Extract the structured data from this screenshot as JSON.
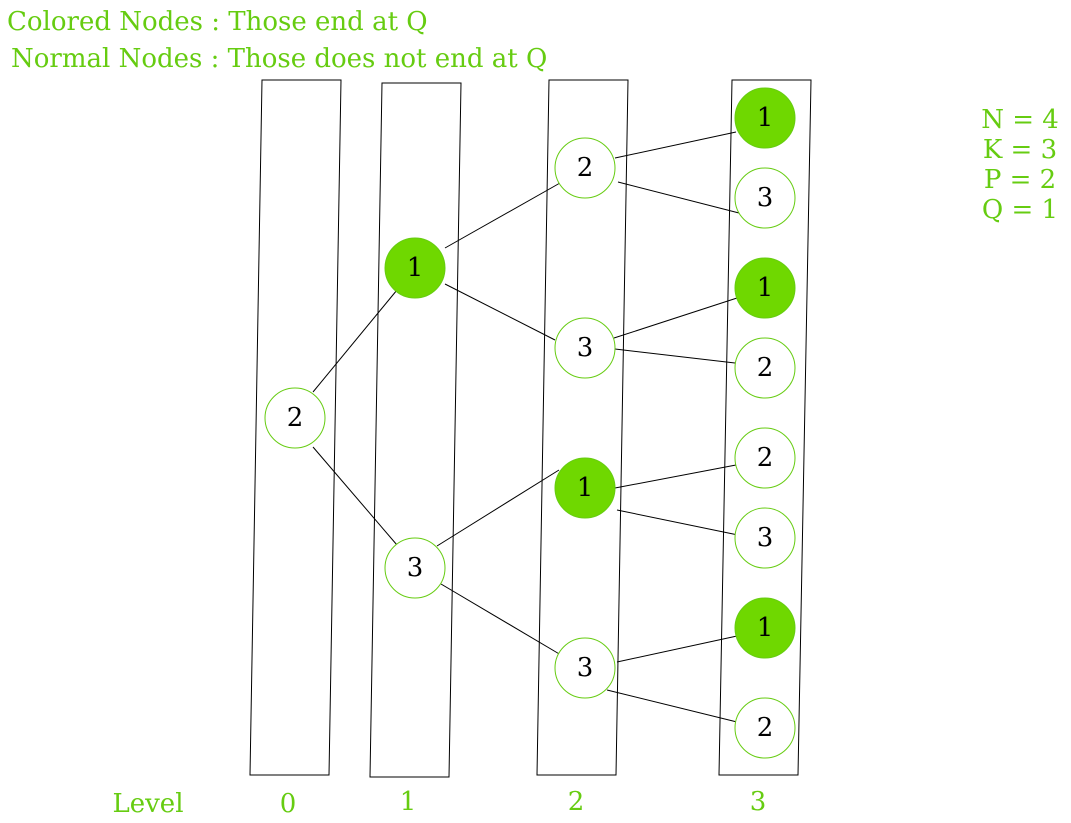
{
  "legend": {
    "colored": "Colored Nodes : Those end at Q",
    "normal": "Normal Nodes : Those does not end at Q"
  },
  "params": [
    "N = 4",
    "K = 3",
    "P = 2",
    "Q = 1"
  ],
  "levels": {
    "title": "Level",
    "labels": [
      "0",
      "1",
      "2",
      "3"
    ]
  },
  "nodes": [
    {
      "label": "2",
      "colored": false
    },
    {
      "label": "1",
      "colored": true
    },
    {
      "label": "3",
      "colored": false
    },
    {
      "label": "2",
      "colored": false
    },
    {
      "label": "3",
      "colored": false
    },
    {
      "label": "1",
      "colored": true
    },
    {
      "label": "3",
      "colored": false
    },
    {
      "label": "1",
      "colored": true
    },
    {
      "label": "3",
      "colored": false
    },
    {
      "label": "1",
      "colored": true
    },
    {
      "label": "2",
      "colored": false
    },
    {
      "label": "2",
      "colored": false
    },
    {
      "label": "3",
      "colored": false
    },
    {
      "label": "1",
      "colored": true
    },
    {
      "label": "2",
      "colored": false
    }
  ]
}
